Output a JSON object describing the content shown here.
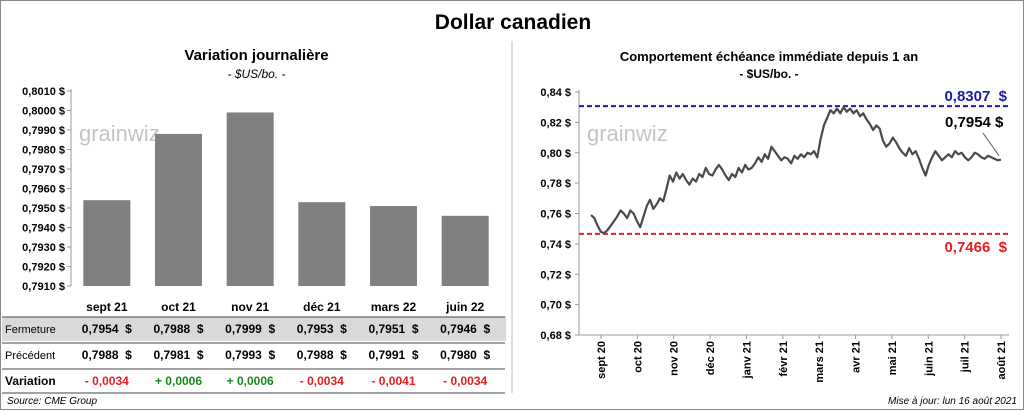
{
  "header": {
    "title": "Dollar canadien"
  },
  "footer": {
    "source": "Source: CME Group",
    "updated": "Mise à jour: lun 16 août 2021"
  },
  "chart_data": [
    {
      "type": "bar",
      "title": "Variation  journalière",
      "subtitle": "- $US/bo. -",
      "categories": [
        "sept 21",
        "oct 21",
        "nov 21",
        "déc 21",
        "mars 22",
        "juin 22"
      ],
      "values": [
        0.7954,
        0.7988,
        0.7999,
        0.7953,
        0.7951,
        0.7946
      ],
      "ylim": [
        0.791,
        0.801
      ],
      "yticks": [
        "0,7910 $",
        "0,7920 $",
        "0,7930 $",
        "0,7940 $",
        "0,7950 $",
        "0,7960 $",
        "0,7970 $",
        "0,7980 $",
        "0,7990 $",
        "0,8000 $",
        "0,8010 $"
      ],
      "color": "#808080",
      "watermark": "grainwiz",
      "table": {
        "rows": [
          {
            "label": "Fermeture",
            "values": [
              "0,7954  $",
              "0,7988  $",
              "0,7999  $",
              "0,7953  $",
              "0,7951  $",
              "0,7946  $"
            ],
            "shaded": true
          },
          {
            "label": "Précédent",
            "values": [
              "0,7988  $",
              "0,7981  $",
              "0,7993  $",
              "0,7988  $",
              "0,7991  $",
              "0,7980  $"
            ],
            "shaded": false
          },
          {
            "label": "Variation",
            "values": [
              "- 0,0034",
              "+ 0,0006",
              "+ 0,0006",
              "- 0,0034",
              "- 0,0041",
              "- 0,0034"
            ],
            "colors": [
              "#e02020",
              "#1a8a1a",
              "#1a8a1a",
              "#e02020",
              "#e02020",
              "#e02020"
            ],
            "shaded": false
          }
        ]
      }
    },
    {
      "type": "line",
      "title": "Comportement échéance immédiate depuis 1 an",
      "subtitle": "- $US/bo. -",
      "ylim": [
        0.68,
        0.84
      ],
      "yticks": [
        "0,68 $",
        "0,70 $",
        "0,72 $",
        "0,74 $",
        "0,76 $",
        "0,78 $",
        "0,80 $",
        "0,82 $",
        "0,84 $"
      ],
      "xticks": [
        "sept 20",
        "oct 20",
        "nov 20",
        "déc 20",
        "janv 21",
        "févr 21",
        "mars 21",
        "avr 21",
        "mai 21",
        "juin 21",
        "juil 21",
        "août 21"
      ],
      "x": [
        0,
        2,
        4,
        6,
        8,
        10,
        12,
        14,
        16,
        18,
        20,
        22,
        24,
        26,
        28,
        30,
        32,
        34,
        36,
        38,
        40,
        42,
        44,
        46,
        48,
        50,
        52,
        54,
        56,
        58,
        60,
        62,
        64,
        66,
        68,
        70,
        72,
        74,
        76,
        78,
        80,
        82,
        84,
        86,
        88,
        90,
        92,
        94,
        96,
        98,
        100,
        102,
        104,
        106,
        108,
        110,
        112,
        114,
        116,
        118,
        120,
        122,
        124,
        126,
        128,
        130,
        132,
        134,
        136,
        138,
        140,
        142,
        144,
        146,
        148,
        150,
        152,
        154,
        156,
        158,
        160,
        162,
        164,
        166,
        168,
        170,
        172,
        174,
        176,
        178,
        180,
        182,
        184,
        186,
        188,
        190,
        192,
        194,
        196,
        198,
        200,
        202,
        204,
        206,
        208,
        210,
        212,
        214,
        216,
        218,
        220,
        222,
        224,
        226,
        228,
        230,
        232,
        234,
        236,
        238,
        240,
        242,
        244,
        246,
        248,
        250
      ],
      "y": [
        0.759,
        0.757,
        0.752,
        0.748,
        0.747,
        0.749,
        0.752,
        0.755,
        0.758,
        0.762,
        0.76,
        0.757,
        0.762,
        0.76,
        0.755,
        0.751,
        0.758,
        0.765,
        0.769,
        0.763,
        0.766,
        0.77,
        0.768,
        0.776,
        0.785,
        0.781,
        0.787,
        0.783,
        0.786,
        0.782,
        0.779,
        0.783,
        0.781,
        0.786,
        0.784,
        0.79,
        0.786,
        0.785,
        0.789,
        0.792,
        0.789,
        0.785,
        0.782,
        0.786,
        0.784,
        0.79,
        0.787,
        0.792,
        0.789,
        0.79,
        0.793,
        0.797,
        0.794,
        0.799,
        0.796,
        0.804,
        0.801,
        0.798,
        0.795,
        0.797,
        0.796,
        0.793,
        0.798,
        0.796,
        0.799,
        0.797,
        0.8,
        0.799,
        0.801,
        0.797,
        0.809,
        0.818,
        0.823,
        0.828,
        0.826,
        0.829,
        0.826,
        0.83,
        0.827,
        0.829,
        0.826,
        0.828,
        0.824,
        0.826,
        0.822,
        0.819,
        0.815,
        0.818,
        0.816,
        0.808,
        0.804,
        0.806,
        0.81,
        0.807,
        0.803,
        0.8,
        0.798,
        0.803,
        0.799,
        0.801,
        0.796,
        0.79,
        0.785,
        0.792,
        0.797,
        0.801,
        0.798,
        0.795,
        0.797,
        0.799,
        0.797,
        0.801,
        0.799,
        0.8,
        0.797,
        0.795,
        0.797,
        0.8,
        0.799,
        0.797,
        0.796,
        0.798,
        0.797,
        0.796,
        0.795,
        0.7954
      ],
      "series_color": "#4a4a4a",
      "high": {
        "value": 0.8307,
        "label": "0,8307  $",
        "color": "#1c1ca0"
      },
      "low": {
        "value": 0.7466,
        "label": "0,7466  $",
        "color": "#e61e1e"
      },
      "last": {
        "value": 0.7954,
        "label": "0,7954 $"
      },
      "watermark": "grainwiz"
    }
  ]
}
